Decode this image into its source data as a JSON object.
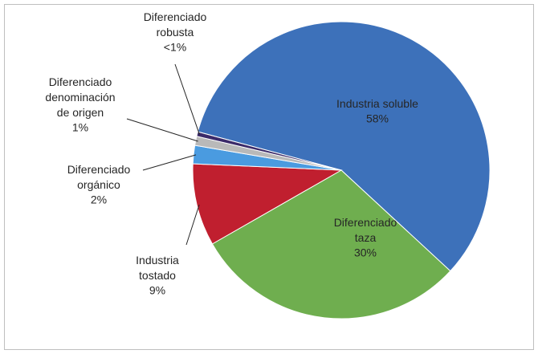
{
  "chart_data": {
    "type": "pie",
    "categories": [
      "Industria soluble",
      "Diferenciado taza",
      "Industria tostado",
      "Diferenciado orgánico",
      "Diferenciado denominación de origen",
      "Diferenciado robusta"
    ],
    "values": [
      58,
      30,
      9,
      2,
      1,
      0.5
    ],
    "value_labels": [
      "58%",
      "30%",
      "9%",
      "2%",
      "1%",
      "<1%"
    ],
    "colors": [
      "#3d71ba",
      "#6fae4f",
      "#c01f2f",
      "#4a9be0",
      "#b9b9b9",
      "#3b2a69"
    ]
  }
}
